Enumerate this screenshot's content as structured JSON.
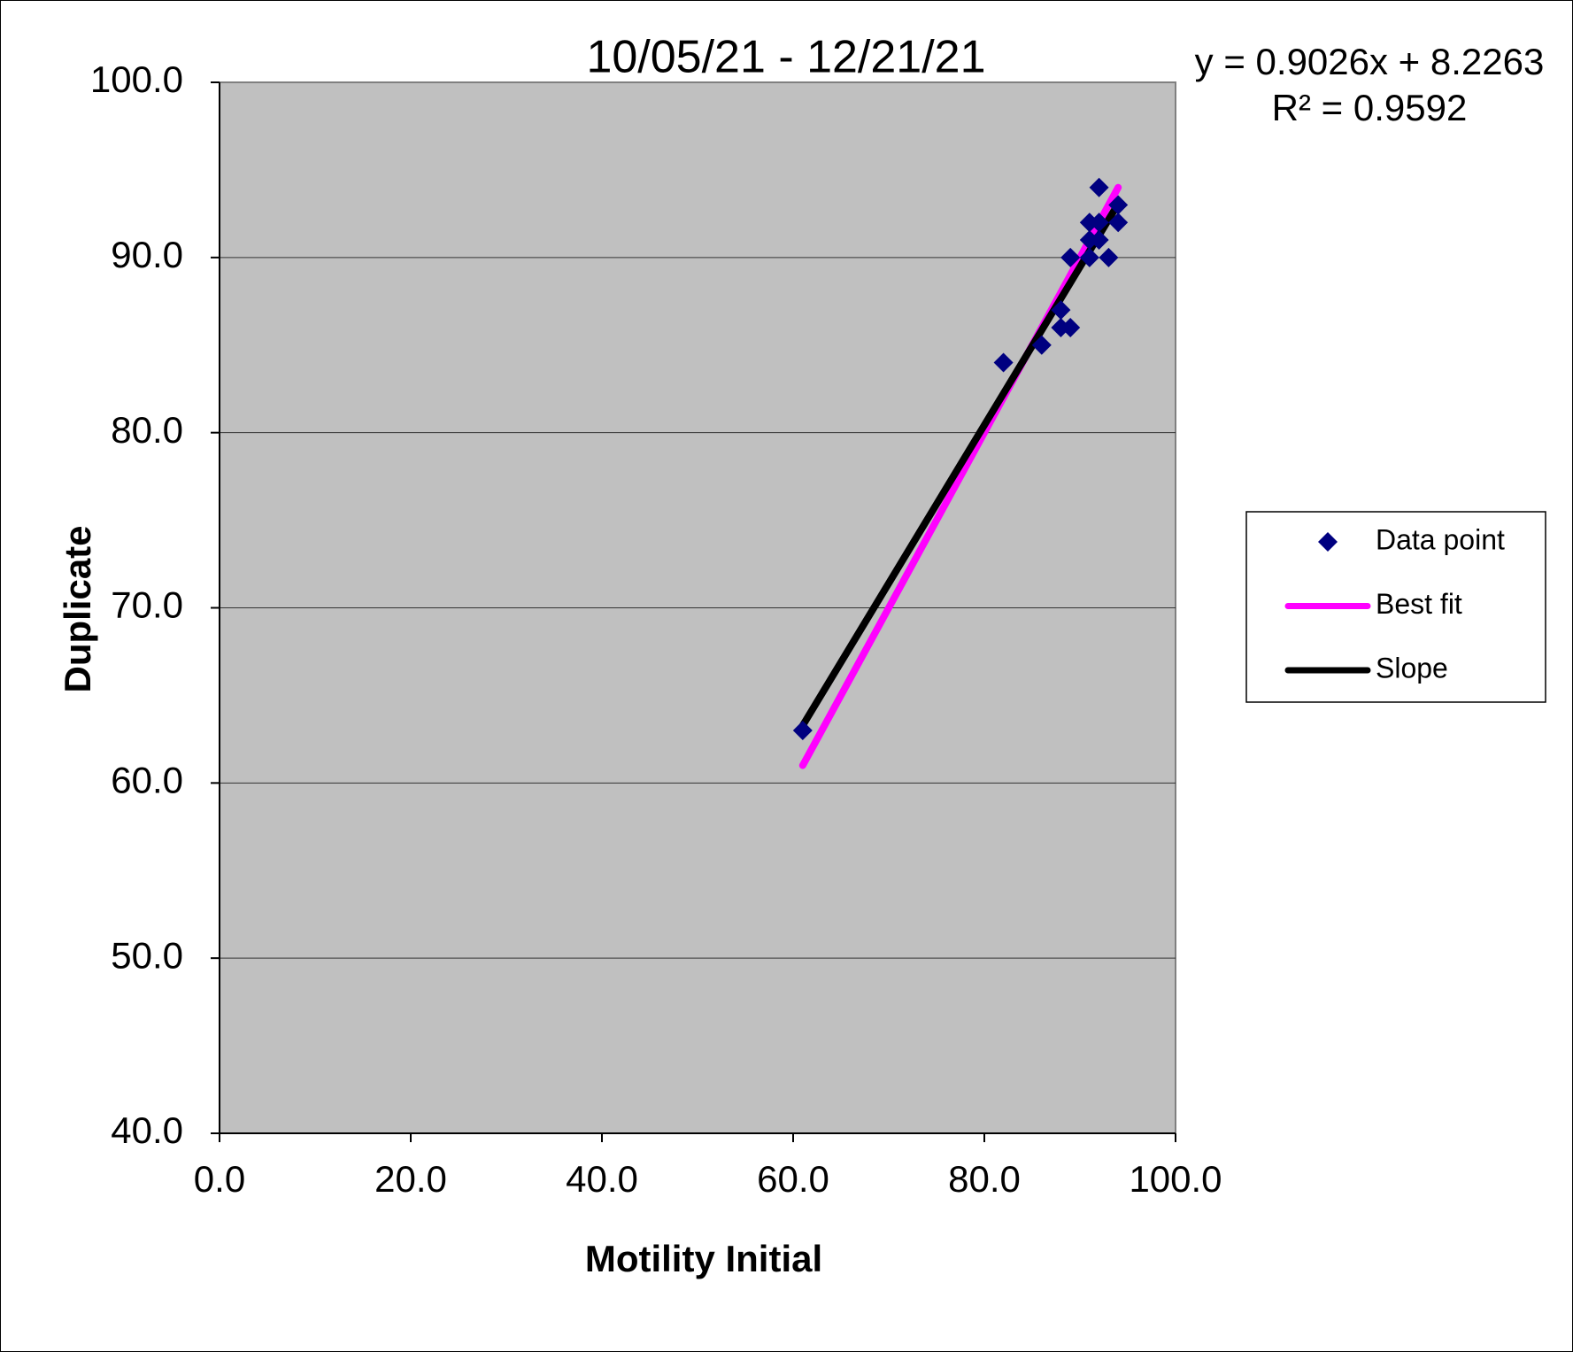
{
  "chart_data": {
    "type": "scatter",
    "title": "10/05/21 - 12/21/21",
    "x_label": "Motility Initial",
    "y_label": "Duplicate",
    "annotations": [
      "y = 0.9026x + 8.2263",
      "R² = 0.9592"
    ],
    "series": [
      {
        "name": "Data point",
        "color": "#000080",
        "mode": "markers",
        "x": [
          61,
          82,
          86,
          88,
          89,
          88,
          89,
          91,
          93,
          91,
          92,
          94,
          94,
          92,
          91,
          92
        ],
        "values": [
          63,
          84,
          85,
          86,
          86,
          87,
          90,
          90,
          90,
          92,
          92,
          92,
          93,
          94,
          91,
          91
        ]
      },
      {
        "name": "Best fit",
        "color": "#ff00ff",
        "mode": "line",
        "x": [
          61,
          94
        ],
        "values": [
          61,
          94
        ]
      },
      {
        "name": "Slope",
        "color": "#000000",
        "mode": "line",
        "x": [
          61,
          94
        ],
        "values": [
          63.28,
          93.07
        ]
      }
    ],
    "xlim": [
      0,
      100
    ],
    "ylim": [
      40,
      100
    ],
    "xticks": [
      {
        "value": 0,
        "label": "0.0"
      },
      {
        "value": 20,
        "label": "20.0"
      },
      {
        "value": 40,
        "label": "40.0"
      },
      {
        "value": 60,
        "label": "60.0"
      },
      {
        "value": 80,
        "label": "80.0"
      },
      {
        "value": 100,
        "label": "100.0"
      }
    ],
    "yticks": [
      {
        "value": 40,
        "label": "40.0"
      },
      {
        "value": 50,
        "label": "50.0"
      },
      {
        "value": 60,
        "label": "60.0"
      },
      {
        "value": 70,
        "label": "70.0"
      },
      {
        "value": 80,
        "label": "80.0"
      },
      {
        "value": 90,
        "label": "90.0"
      },
      {
        "value": 100,
        "label": "100.0"
      }
    ],
    "grid": true,
    "legend": "right"
  }
}
